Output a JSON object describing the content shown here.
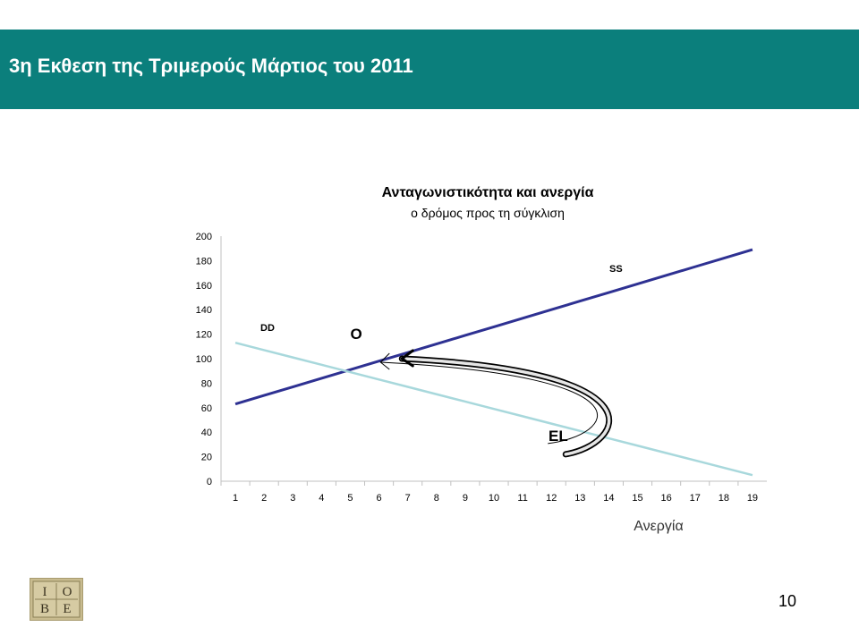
{
  "slide": {
    "title": "3η Εκθεση της Τριμερούς Μάρτιος του 2011",
    "page_number": "10",
    "logo_text": "IOBE"
  },
  "colors": {
    "header_band": "#0b7f7c",
    "ss_line": "#2e3192",
    "dd_line": "#a8d8dc",
    "arrow": "#000000"
  },
  "chart_data": {
    "type": "line",
    "title": "Ανταγωνιστικότητα και ανεργία",
    "subtitle": "ο δρόμος προς τη σύγκλιση",
    "xlabel": "Ανεργία",
    "ylabel": "",
    "x": [
      1,
      2,
      3,
      4,
      5,
      6,
      7,
      8,
      9,
      10,
      11,
      12,
      13,
      14,
      15,
      16,
      17,
      18,
      19
    ],
    "ylim": [
      0,
      200
    ],
    "yticks": [
      0,
      20,
      40,
      60,
      80,
      100,
      120,
      140,
      160,
      180,
      200
    ],
    "grid": false,
    "series": [
      {
        "name": "SS",
        "color": "#2e3192",
        "values": [
          63,
          70,
          77,
          84,
          91,
          98,
          105,
          112,
          119,
          126,
          133,
          140,
          147,
          154,
          161,
          168,
          175,
          182,
          189
        ]
      },
      {
        "name": "DD",
        "color": "#a8d8dc",
        "values": [
          113,
          107,
          101,
          95,
          89,
          83,
          77,
          71,
          65,
          59,
          53,
          47,
          41,
          35,
          29,
          23,
          17,
          11,
          5
        ]
      }
    ],
    "annotations": [
      {
        "text": "O",
        "x": 5,
        "y": 116
      },
      {
        "text": "EL",
        "x": 11.9,
        "y": 33
      }
    ],
    "arrow_path": {
      "start": {
        "x": 12.5,
        "y": 22
      },
      "control1": {
        "x": 14.5,
        "y": 30
      },
      "control2": {
        "x": 16,
        "y": 90
      },
      "end": {
        "x": 6.8,
        "y": 100
      }
    }
  }
}
